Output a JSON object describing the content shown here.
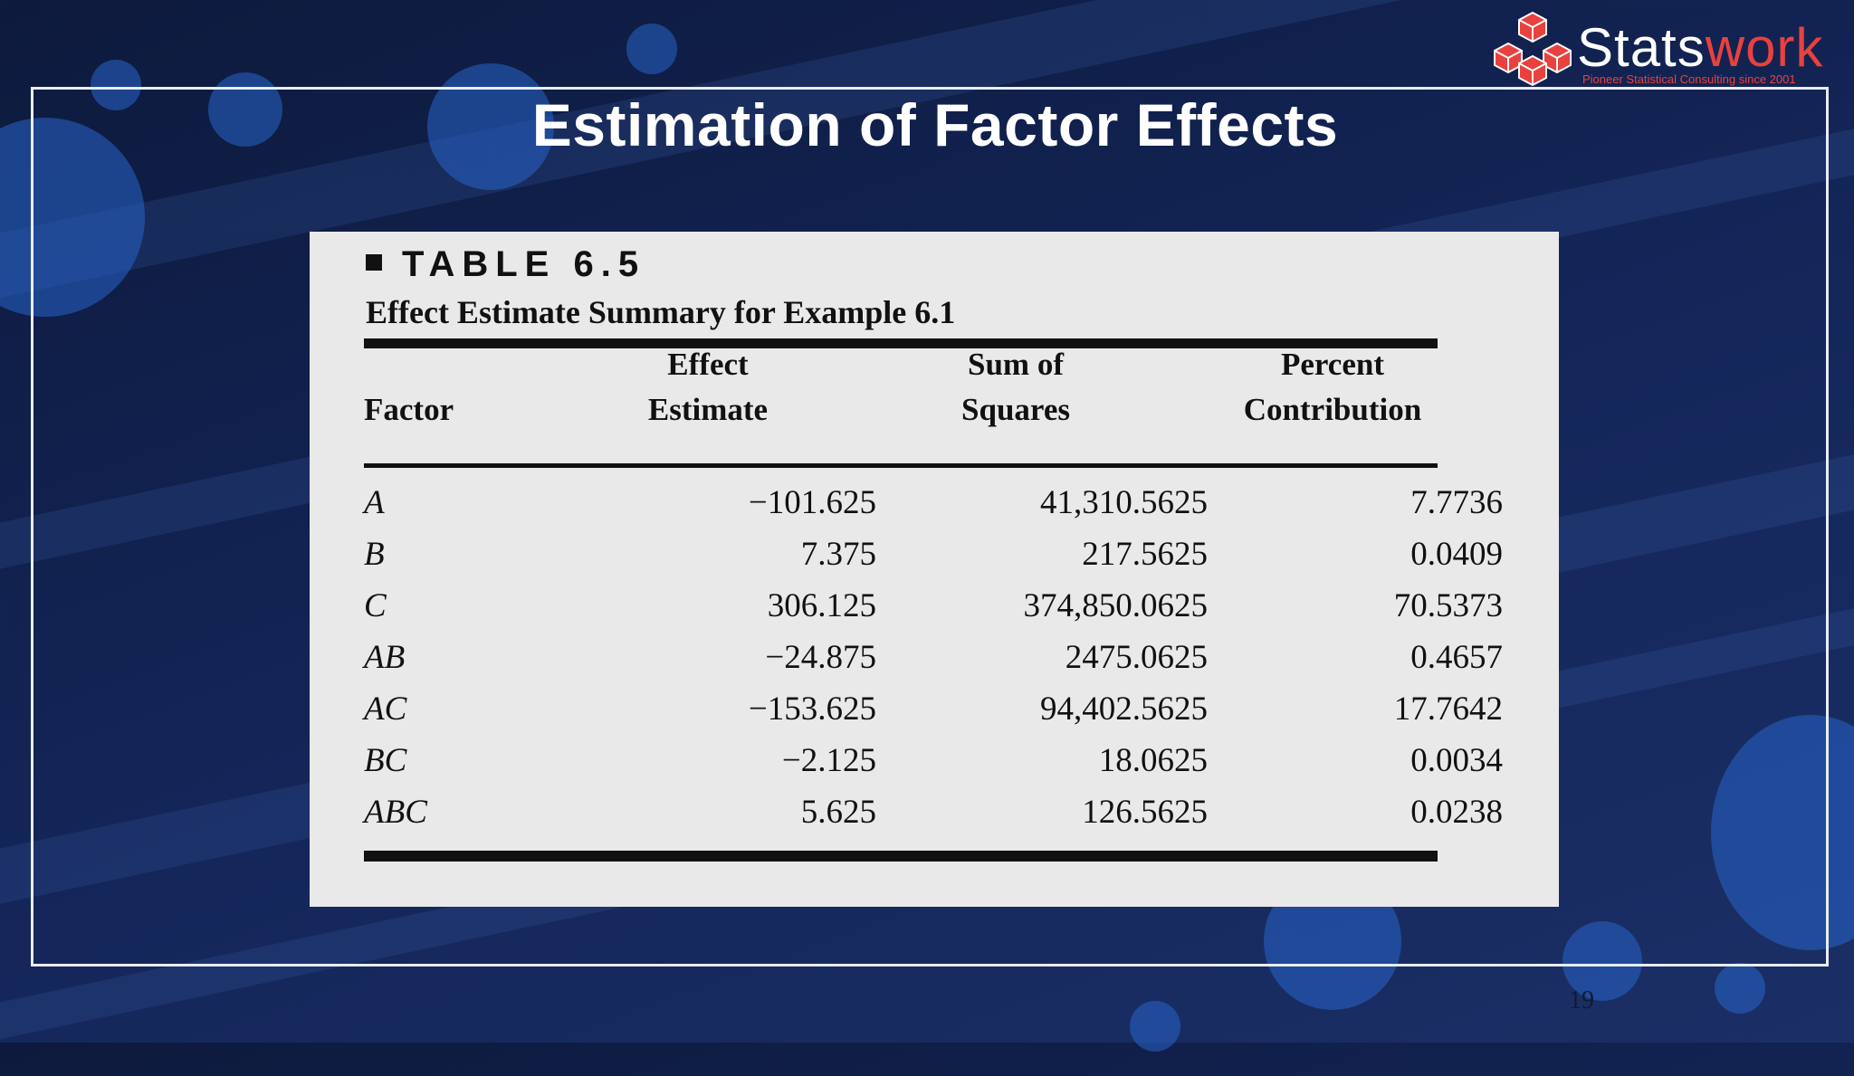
{
  "slide": {
    "title": "Estimation of Factor Effects",
    "page_number": "19"
  },
  "brand": {
    "name_part1": "Stats",
    "name_part2": "work",
    "tagline": "Pioneer Statistical Consulting since 2001",
    "accent_color": "#e8413e"
  },
  "table": {
    "label": "TABLE 6.5",
    "caption": "Effect Estimate Summary for Example 6.1",
    "headers": {
      "factor": "Factor",
      "effect_1": "Effect",
      "effect_2": "Estimate",
      "ss_1": "Sum of",
      "ss_2": "Squares",
      "pc_1": "Percent",
      "pc_2": "Contribution"
    },
    "rows": [
      {
        "factor": "A",
        "effect": "−101.625",
        "ss": "41,310.5625",
        "pc": "7.7736"
      },
      {
        "factor": "B",
        "effect": "7.375",
        "ss": "217.5625",
        "pc": "0.0409"
      },
      {
        "factor": "C",
        "effect": "306.125",
        "ss": "374,850.0625",
        "pc": "70.5373"
      },
      {
        "factor": "AB",
        "effect": "−24.875",
        "ss": "2475.0625",
        "pc": "0.4657"
      },
      {
        "factor": "AC",
        "effect": "−153.625",
        "ss": "94,402.5625",
        "pc": "17.7642"
      },
      {
        "factor": "BC",
        "effect": "−2.125",
        "ss": "18.0625",
        "pc": "0.0034"
      },
      {
        "factor": "ABC",
        "effect": "5.625",
        "ss": "126.5625",
        "pc": "0.0238"
      }
    ]
  }
}
